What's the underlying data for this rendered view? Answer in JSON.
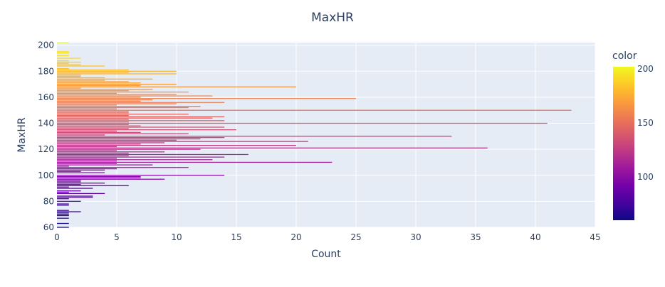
{
  "chart_data": {
    "type": "bar",
    "orientation": "horizontal",
    "title": "MaxHR",
    "xlabel": "Count",
    "ylabel": "MaxHR",
    "xlim": [
      0,
      45
    ],
    "ylim": [
      60,
      202
    ],
    "x_ticks": [
      0,
      5,
      10,
      15,
      20,
      25,
      30,
      35,
      40,
      45
    ],
    "y_ticks": [
      60,
      80,
      100,
      120,
      140,
      160,
      180,
      200
    ],
    "grid": true,
    "plot_background": "#e5ecf6",
    "colorbar": {
      "title": "color",
      "range": [
        60,
        202
      ],
      "ticks": [
        100,
        150,
        200
      ],
      "colorscale": [
        "#0d0887",
        "#46039f",
        "#7201a8",
        "#9c179e",
        "#bd3786",
        "#d8576b",
        "#ed7953",
        "#fb9f3a",
        "#fdca26",
        "#f0f921"
      ]
    },
    "series": [
      {
        "maxhr": [
          60,
          63,
          67,
          69,
          70,
          71,
          72,
          73,
          77,
          78,
          80,
          82,
          83,
          84,
          86,
          87,
          88,
          90,
          91,
          92,
          93,
          94,
          95,
          96,
          97,
          98,
          99,
          100,
          102,
          103,
          104,
          105,
          106,
          107,
          108,
          109,
          110,
          111,
          112,
          113,
          114,
          115,
          116,
          117,
          118,
          119,
          120,
          121,
          122,
          123,
          124,
          125,
          126,
          127,
          128,
          129,
          130,
          131,
          132,
          133,
          134,
          135,
          136,
          137,
          138,
          139,
          140,
          141,
          142,
          143,
          144,
          145,
          146,
          147,
          148,
          149,
          150,
          151,
          152,
          153,
          154,
          155,
          156,
          157,
          158,
          159,
          160,
          161,
          162,
          163,
          164,
          165,
          166,
          167,
          168,
          169,
          170,
          171,
          172,
          173,
          174,
          175,
          176,
          177,
          178,
          179,
          180,
          181,
          182,
          184,
          185,
          186,
          187,
          188,
          190,
          192,
          194,
          195,
          202
        ],
        "count": [
          1,
          1,
          1,
          1,
          1,
          1,
          2,
          1,
          1,
          1,
          2,
          1,
          3,
          3,
          4,
          1,
          2,
          3,
          1,
          6,
          2,
          4,
          2,
          2,
          9,
          7,
          7,
          14,
          4,
          2,
          4,
          5,
          11,
          1,
          8,
          5,
          23,
          5,
          13,
          5,
          14,
          6,
          16,
          6,
          9,
          5,
          12,
          36,
          5,
          20,
          7,
          9,
          21,
          10,
          12,
          14,
          33,
          4,
          11,
          7,
          5,
          15,
          6,
          14,
          7,
          6,
          41,
          6,
          14,
          6,
          13,
          14,
          6,
          11,
          6,
          6,
          43,
          5,
          11,
          12,
          5,
          10,
          14,
          7,
          8,
          25,
          7,
          13,
          10,
          5,
          11,
          6,
          8,
          2,
          20,
          7,
          10,
          7,
          6,
          4,
          8,
          4,
          2,
          2,
          10,
          6,
          10,
          6,
          1,
          4,
          2,
          1,
          2,
          1,
          2,
          1,
          1,
          1,
          1
        ]
      }
    ]
  }
}
